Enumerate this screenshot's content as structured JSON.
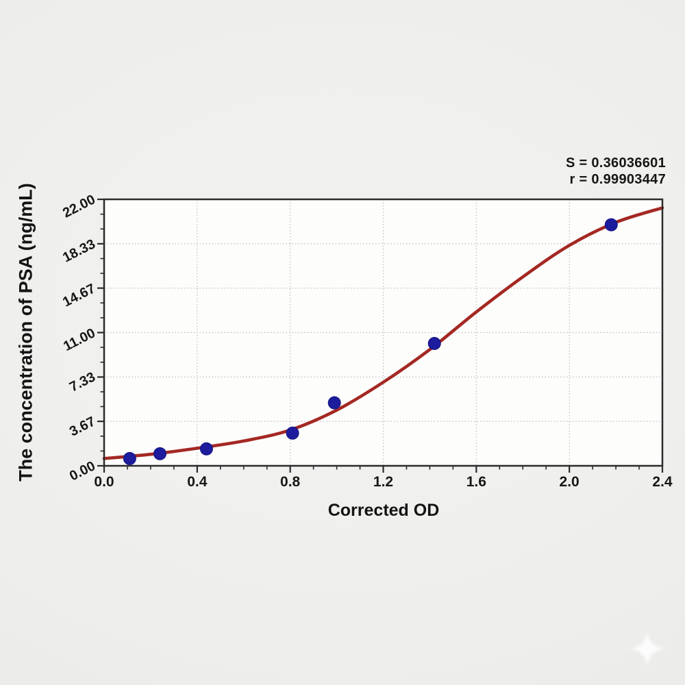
{
  "chart_data": {
    "type": "scatter",
    "title": "",
    "xlabel": "Corrected OD",
    "ylabel": "The concentration of PSA (ng/mL)",
    "xlim": [
      0,
      2.4
    ],
    "ylim": [
      0,
      22
    ],
    "x_tick_values": [
      0,
      0.4,
      0.8,
      1.2,
      1.6,
      2.0,
      2.4
    ],
    "x_tick_labels": [
      "0.0",
      "0.4",
      "0.8",
      "1.2",
      "1.6",
      "2.0",
      "2.4"
    ],
    "x_minor_tick_step": 0.1,
    "y_tick_values": [
      0,
      3.67,
      7.33,
      11.0,
      14.67,
      18.33,
      22.0
    ],
    "y_tick_labels": [
      "0.00",
      "3.67",
      "7.33",
      "11.00",
      "14.67",
      "18.33",
      "22.00"
    ],
    "y_minor_ticks_between_major": 2,
    "grid": "dotted-major",
    "legend": "none",
    "stats_lines": [
      "S = 0.36036601",
      "r = 0.99903447"
    ],
    "series": [
      {
        "name": "standard-points",
        "type": "scatter",
        "marker": "circle",
        "points": [
          [
            0.11,
            0.6
          ],
          [
            0.24,
            1.0
          ],
          [
            0.44,
            1.4
          ],
          [
            0.81,
            2.7
          ],
          [
            0.99,
            5.2
          ],
          [
            1.42,
            10.1
          ],
          [
            2.18,
            19.9
          ]
        ]
      },
      {
        "name": "fitted-curve",
        "type": "line",
        "points": [
          [
            0,
            0.6
          ],
          [
            0.2,
            0.95
          ],
          [
            0.4,
            1.45
          ],
          [
            0.6,
            2.05
          ],
          [
            0.8,
            2.95
          ],
          [
            1.0,
            4.6
          ],
          [
            1.2,
            6.9
          ],
          [
            1.4,
            9.6
          ],
          [
            1.6,
            12.7
          ],
          [
            1.8,
            15.6
          ],
          [
            2.0,
            18.2
          ],
          [
            2.2,
            20.1
          ],
          [
            2.4,
            21.3
          ]
        ]
      }
    ],
    "colors": {
      "page_background": "#eeeeec",
      "plot_background": "#fdfdfc",
      "axis": "#2b2b2b",
      "grid": "#bcbcbc",
      "curve": "#a42823",
      "points": "#1c1c9c",
      "text": "#161616"
    },
    "watermark": {
      "icon": "sparkle-four-point-star",
      "color": "#ffffff"
    }
  }
}
